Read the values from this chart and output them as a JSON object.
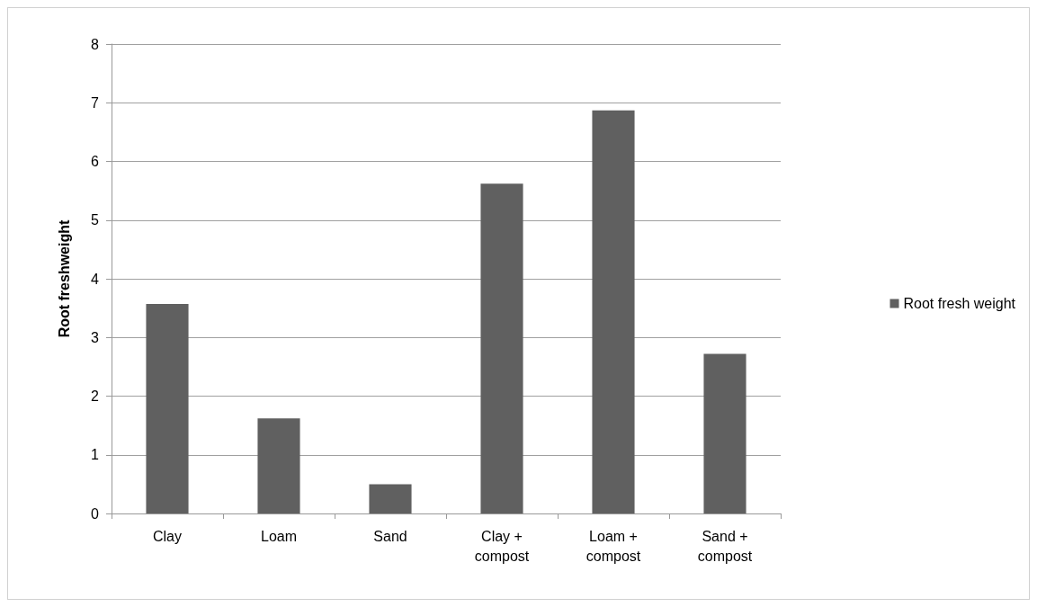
{
  "chart_data": {
    "type": "bar",
    "ylabel": "Root freshweight",
    "categories": [
      "Clay",
      "Loam",
      "Sand",
      "Clay +\ncompost",
      "Loam +\ncompost",
      "Sand +\ncompost"
    ],
    "series": [
      {
        "name": "Root fresh weight",
        "color": "#606060",
        "values": [
          3.57,
          1.62,
          0.5,
          5.62,
          6.87,
          2.72
        ]
      }
    ],
    "ylim": [
      0,
      8
    ],
    "yticks": [
      0,
      1,
      2,
      3,
      4,
      5,
      6,
      7,
      8
    ],
    "grid": "y",
    "legend": "right"
  }
}
